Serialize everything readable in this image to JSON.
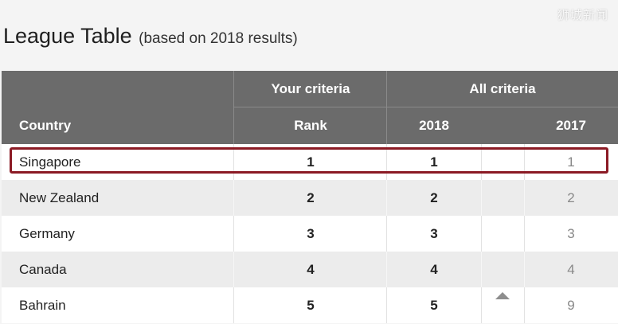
{
  "watermark": "狮城新闻",
  "heading": {
    "title": "League Table",
    "subtitle": "(based on 2018 results)"
  },
  "table": {
    "group_headers": {
      "your_criteria": "Your criteria",
      "all_criteria": "All criteria"
    },
    "columns": {
      "country": "Country",
      "rank": "Rank",
      "y2018": "2018",
      "y2017": "2017"
    },
    "rows": [
      {
        "country": "Singapore",
        "rank": "1",
        "y2018": "1",
        "y2017": "1",
        "highlighted": true
      },
      {
        "country": "New Zealand",
        "rank": "2",
        "y2018": "2",
        "y2017": "2"
      },
      {
        "country": "Germany",
        "rank": "3",
        "y2018": "3",
        "y2017": "3"
      },
      {
        "country": "Canada",
        "rank": "4",
        "y2018": "4",
        "y2017": "4"
      },
      {
        "country": "Bahrain",
        "rank": "5",
        "y2018": "5",
        "y2017": "9",
        "trend_icon": "up-arrow-icon"
      }
    ]
  },
  "colors": {
    "header_bg": "#6b6b6b",
    "highlight_border": "#8b1a24",
    "row_alt_bg": "#ececec"
  }
}
